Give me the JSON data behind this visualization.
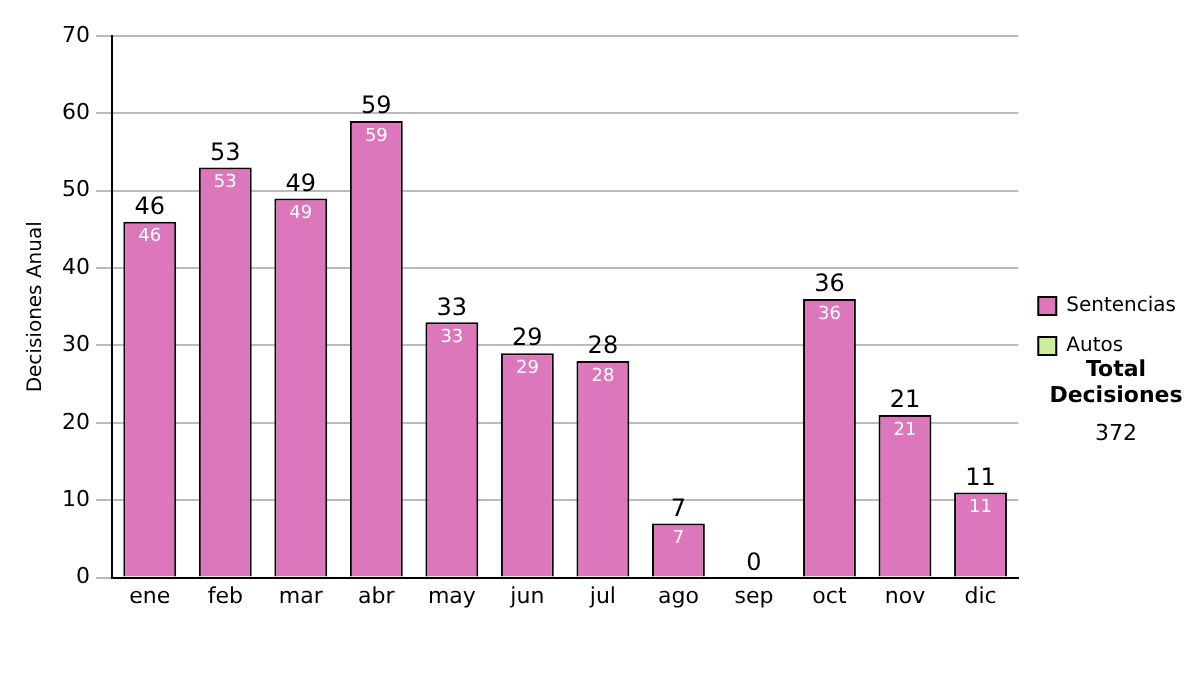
{
  "chart_data": {
    "type": "bar",
    "ylabel": "Decisiones Anual",
    "categories": [
      "ene",
      "feb",
      "mar",
      "abr",
      "may",
      "jun",
      "jul",
      "ago",
      "sep",
      "oct",
      "nov",
      "dic"
    ],
    "series": [
      {
        "name": "Sentencias",
        "color": "#dd77bb",
        "values": [
          46,
          53,
          49,
          59,
          33,
          29,
          28,
          7,
          0,
          36,
          21,
          11
        ],
        "value_labels": [
          "46",
          "53",
          "49",
          "59",
          "33",
          "29",
          "28",
          "7",
          null,
          "36",
          "21",
          "11"
        ]
      },
      {
        "name": "Autos",
        "color": "#ccee99",
        "values": [
          0,
          0,
          0,
          0,
          0,
          0,
          0,
          0,
          0,
          0,
          0,
          0
        ]
      }
    ],
    "stacked": true,
    "totals": [
      "46",
      "53",
      "49",
      "59",
      "33",
      "29",
      "28",
      "7",
      "0",
      "36",
      "21",
      "11"
    ],
    "ylim": [
      0,
      70
    ],
    "yticks": [
      0,
      10,
      20,
      30,
      40,
      50,
      60,
      70
    ],
    "grid": "y",
    "legend": "right",
    "annotations": [
      "Total Decisiones",
      "372"
    ]
  }
}
